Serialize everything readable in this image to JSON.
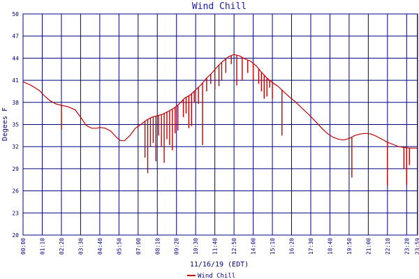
{
  "chart_data": {
    "type": "line",
    "title": "Wind Chill",
    "xlabel": "11/16/19 (EDT)",
    "ylabel": "Degees F",
    "ylim": [
      20,
      50
    ],
    "yticks": [
      20,
      23,
      26,
      29,
      32,
      35,
      38,
      41,
      44,
      47,
      50
    ],
    "xlim": [
      "00:00",
      "24:00"
    ],
    "xtick_labels": [
      "00:00",
      "01:10",
      "02:20",
      "03:30",
      "04:40",
      "05:50",
      "07:00",
      "08:10",
      "09:20",
      "10:30",
      "11:40",
      "12:50",
      "14:00",
      "15:10",
      "16:20",
      "17:30",
      "18:40",
      "19:50",
      "21:00",
      "22:10",
      "23:20",
      "23:59"
    ],
    "grid": true,
    "legend": {
      "placement": "bottom",
      "entries": [
        {
          "name": "Wind Chill",
          "color": "#c00000"
        }
      ]
    },
    "series": [
      {
        "name": "Wind Chill",
        "color": "#c00000",
        "points": [
          [
            "00:00",
            40.8
          ],
          [
            "00:30",
            40.3
          ],
          [
            "01:00",
            39.6
          ],
          [
            "01:20",
            38.8
          ],
          [
            "01:40",
            38.2
          ],
          [
            "02:00",
            37.8
          ],
          [
            "02:20",
            37.6
          ],
          [
            "02:45",
            37.4
          ],
          [
            "03:10",
            37.0
          ],
          [
            "03:30",
            36.0
          ],
          [
            "03:50",
            34.9
          ],
          [
            "04:10",
            34.5
          ],
          [
            "04:30",
            34.5
          ],
          [
            "04:40",
            34.6
          ],
          [
            "05:00",
            34.5
          ],
          [
            "05:20",
            34.1
          ],
          [
            "05:40",
            33.3
          ],
          [
            "05:55",
            32.8
          ],
          [
            "06:10",
            32.8
          ],
          [
            "06:30",
            33.5
          ],
          [
            "06:50",
            34.5
          ],
          [
            "07:10",
            35.0
          ],
          [
            "07:30",
            35.6
          ],
          [
            "07:50",
            36.0
          ],
          [
            "08:10",
            36.2
          ],
          [
            "08:30",
            36.4
          ],
          [
            "08:50",
            36.8
          ],
          [
            "09:10",
            37.2
          ],
          [
            "09:30",
            37.8
          ],
          [
            "09:50",
            38.6
          ],
          [
            "10:10",
            39.0
          ],
          [
            "10:30",
            39.7
          ],
          [
            "10:50",
            40.4
          ],
          [
            "11:10",
            41.3
          ],
          [
            "11:30",
            42.0
          ],
          [
            "11:50",
            42.9
          ],
          [
            "12:10",
            43.6
          ],
          [
            "12:30",
            44.2
          ],
          [
            "12:50",
            44.5
          ],
          [
            "13:10",
            44.3
          ],
          [
            "13:30",
            43.9
          ],
          [
            "13:50",
            43.6
          ],
          [
            "14:10",
            43.0
          ],
          [
            "14:30",
            42.1
          ],
          [
            "14:50",
            41.3
          ],
          [
            "15:10",
            40.7
          ],
          [
            "15:30",
            40.2
          ],
          [
            "15:50",
            39.5
          ],
          [
            "16:10",
            38.8
          ],
          [
            "16:30",
            38.2
          ],
          [
            "16:50",
            37.5
          ],
          [
            "17:10",
            36.8
          ],
          [
            "17:30",
            36.1
          ],
          [
            "17:50",
            35.3
          ],
          [
            "18:10",
            34.5
          ],
          [
            "18:30",
            33.8
          ],
          [
            "18:50",
            33.3
          ],
          [
            "19:10",
            33.0
          ],
          [
            "19:30",
            32.9
          ],
          [
            "19:50",
            33.1
          ],
          [
            "20:10",
            33.5
          ],
          [
            "20:30",
            33.7
          ],
          [
            "20:50",
            33.8
          ],
          [
            "21:10",
            33.7
          ],
          [
            "21:30",
            33.4
          ],
          [
            "21:50",
            33.0
          ],
          [
            "22:10",
            32.6
          ],
          [
            "22:30",
            32.3
          ],
          [
            "22:50",
            32.0
          ],
          [
            "23:10",
            31.9
          ],
          [
            "23:30",
            31.8
          ],
          [
            "23:59",
            31.8
          ]
        ],
        "drops": [
          [
            "02:20",
            34.3
          ],
          [
            "07:25",
            30.5
          ],
          [
            "07:35",
            28.4
          ],
          [
            "07:45",
            32.0
          ],
          [
            "07:55",
            32.5
          ],
          [
            "08:05",
            30.0
          ],
          [
            "08:15",
            33.5
          ],
          [
            "08:25",
            32.0
          ],
          [
            "08:35",
            29.8
          ],
          [
            "08:45",
            33.0
          ],
          [
            "08:55",
            32.2
          ],
          [
            "09:05",
            31.5
          ],
          [
            "09:15",
            33.8
          ],
          [
            "09:25",
            34.2
          ],
          [
            "09:45",
            36.0
          ],
          [
            "09:55",
            36.5
          ],
          [
            "10:05",
            34.5
          ],
          [
            "10:15",
            34.8
          ],
          [
            "10:25",
            38.0
          ],
          [
            "10:40",
            37.8
          ],
          [
            "10:55",
            32.2
          ],
          [
            "11:10",
            39.5
          ],
          [
            "11:25",
            40.5
          ],
          [
            "11:40",
            39.8
          ],
          [
            "11:55",
            40.2
          ],
          [
            "12:05",
            41.0
          ],
          [
            "12:20",
            42.0
          ],
          [
            "12:40",
            43.2
          ],
          [
            "13:00",
            40.3
          ],
          [
            "13:20",
            41.0
          ],
          [
            "13:40",
            42.0
          ],
          [
            "14:00",
            41.0
          ],
          [
            "14:20",
            40.5
          ],
          [
            "14:30",
            39.5
          ],
          [
            "14:40",
            38.5
          ],
          [
            "14:50",
            38.8
          ],
          [
            "15:00",
            40.0
          ],
          [
            "15:10",
            38.5
          ],
          [
            "15:45",
            33.5
          ],
          [
            "20:00",
            27.8
          ],
          [
            "22:10",
            26.7
          ],
          [
            "23:10",
            29.0
          ],
          [
            "23:20",
            26.8
          ],
          [
            "23:30",
            29.5
          ]
        ]
      }
    ]
  }
}
